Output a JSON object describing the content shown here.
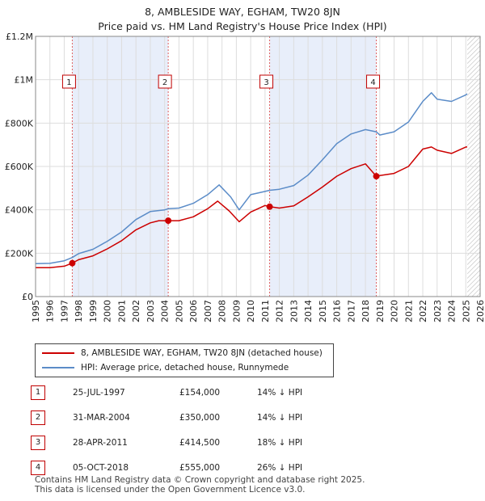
{
  "title_line1": "8, AMBLESIDE WAY, EGHAM, TW20 8JN",
  "title_line2": "Price paid vs. HM Land Registry's House Price Index (HPI)",
  "colors": {
    "property": "#cc0000",
    "hpi": "#5b8cc8",
    "shade": "#e8eefa",
    "grid": "#dddddd"
  },
  "chart_data": {
    "type": "line",
    "title": "8, AMBLESIDE WAY, EGHAM, TW20 8JN",
    "xlim": [
      1995,
      2026
    ],
    "ylim": [
      0,
      1200000
    ],
    "y_ticks": [
      0,
      200000,
      400000,
      600000,
      800000,
      1000000,
      1200000
    ],
    "y_tick_labels": [
      "£0",
      "£200K",
      "£400K",
      "£600K",
      "£800K",
      "£1M",
      "£1.2M"
    ],
    "x_ticks": [
      1995,
      1996,
      1997,
      1998,
      1999,
      2000,
      2001,
      2002,
      2003,
      2004,
      2005,
      2006,
      2007,
      2008,
      2009,
      2010,
      2011,
      2012,
      2013,
      2014,
      2015,
      2016,
      2017,
      2018,
      2019,
      2020,
      2021,
      2022,
      2023,
      2024,
      2025,
      2026
    ],
    "shaded_ranges": [
      [
        1997.56,
        2004.25
      ],
      [
        2011.32,
        2018.76
      ]
    ],
    "hatched_from": 2025.1,
    "series": [
      {
        "name": "8, AMBLESIDE WAY, EGHAM, TW20 8JN (detached house)",
        "color": "#cc0000",
        "points": [
          [
            1995,
            133000
          ],
          [
            1996,
            133000
          ],
          [
            1997,
            140000
          ],
          [
            1997.56,
            154000
          ],
          [
            1998,
            170000
          ],
          [
            1999,
            188000
          ],
          [
            2000,
            220000
          ],
          [
            2001,
            258000
          ],
          [
            2002,
            308000
          ],
          [
            2003,
            340000
          ],
          [
            2003.6,
            350000
          ],
          [
            2004.25,
            350000
          ],
          [
            2005,
            350000
          ],
          [
            2006,
            368000
          ],
          [
            2007,
            405000
          ],
          [
            2007.7,
            440000
          ],
          [
            2008.5,
            395000
          ],
          [
            2009.2,
            345000
          ],
          [
            2010,
            390000
          ],
          [
            2011,
            420000
          ],
          [
            2011.32,
            414500
          ],
          [
            2012,
            408000
          ],
          [
            2013,
            418000
          ],
          [
            2014,
            460000
          ],
          [
            2015,
            505000
          ],
          [
            2016,
            555000
          ],
          [
            2017,
            590000
          ],
          [
            2018,
            612000
          ],
          [
            2018.76,
            555000
          ],
          [
            2019,
            558000
          ],
          [
            2020,
            568000
          ],
          [
            2021,
            600000
          ],
          [
            2022,
            680000
          ],
          [
            2022.6,
            690000
          ],
          [
            2023,
            675000
          ],
          [
            2024,
            660000
          ],
          [
            2025,
            690000
          ],
          [
            2025.1,
            690000
          ]
        ]
      },
      {
        "name": "HPI: Average price, detached house, Runnymede",
        "color": "#5b8cc8",
        "points": [
          [
            1995,
            152000
          ],
          [
            1996,
            153000
          ],
          [
            1997,
            165000
          ],
          [
            1997.56,
            180000
          ],
          [
            1998,
            198000
          ],
          [
            1999,
            218000
          ],
          [
            2000,
            255000
          ],
          [
            2001,
            298000
          ],
          [
            2002,
            355000
          ],
          [
            2003,
            392000
          ],
          [
            2004,
            400000
          ],
          [
            2004.25,
            405000
          ],
          [
            2005,
            408000
          ],
          [
            2006,
            430000
          ],
          [
            2007,
            470000
          ],
          [
            2007.8,
            515000
          ],
          [
            2008.6,
            460000
          ],
          [
            2009.2,
            400000
          ],
          [
            2010,
            470000
          ],
          [
            2011,
            485000
          ],
          [
            2011.32,
            490000
          ],
          [
            2012,
            495000
          ],
          [
            2013,
            512000
          ],
          [
            2014,
            560000
          ],
          [
            2015,
            630000
          ],
          [
            2016,
            705000
          ],
          [
            2017,
            750000
          ],
          [
            2018,
            770000
          ],
          [
            2018.76,
            760000
          ],
          [
            2019,
            745000
          ],
          [
            2020,
            760000
          ],
          [
            2021,
            805000
          ],
          [
            2022,
            900000
          ],
          [
            2022.6,
            940000
          ],
          [
            2023,
            910000
          ],
          [
            2024,
            900000
          ],
          [
            2025,
            930000
          ],
          [
            2025.1,
            935000
          ]
        ]
      }
    ],
    "sale_markers": [
      {
        "label": "1",
        "x": 1997.56,
        "y": 154000
      },
      {
        "label": "2",
        "x": 2004.25,
        "y": 350000
      },
      {
        "label": "3",
        "x": 2011.32,
        "y": 414500
      },
      {
        "label": "4",
        "x": 2018.76,
        "y": 555000
      }
    ]
  },
  "legend": {
    "property_label": "8, AMBLESIDE WAY, EGHAM, TW20 8JN (detached house)",
    "hpi_label": "HPI: Average price, detached house, Runnymede"
  },
  "sales": [
    {
      "num": "1",
      "date": "25-JUL-1997",
      "price": "£154,000",
      "delta": "14% ↓ HPI"
    },
    {
      "num": "2",
      "date": "31-MAR-2004",
      "price": "£350,000",
      "delta": "14% ↓ HPI"
    },
    {
      "num": "3",
      "date": "28-APR-2011",
      "price": "£414,500",
      "delta": "18% ↓ HPI"
    },
    {
      "num": "4",
      "date": "05-OCT-2018",
      "price": "£555,000",
      "delta": "26% ↓ HPI"
    }
  ],
  "footer_line1": "Contains HM Land Registry data © Crown copyright and database right 2025.",
  "footer_line2": "This data is licensed under the Open Government Licence v3.0."
}
